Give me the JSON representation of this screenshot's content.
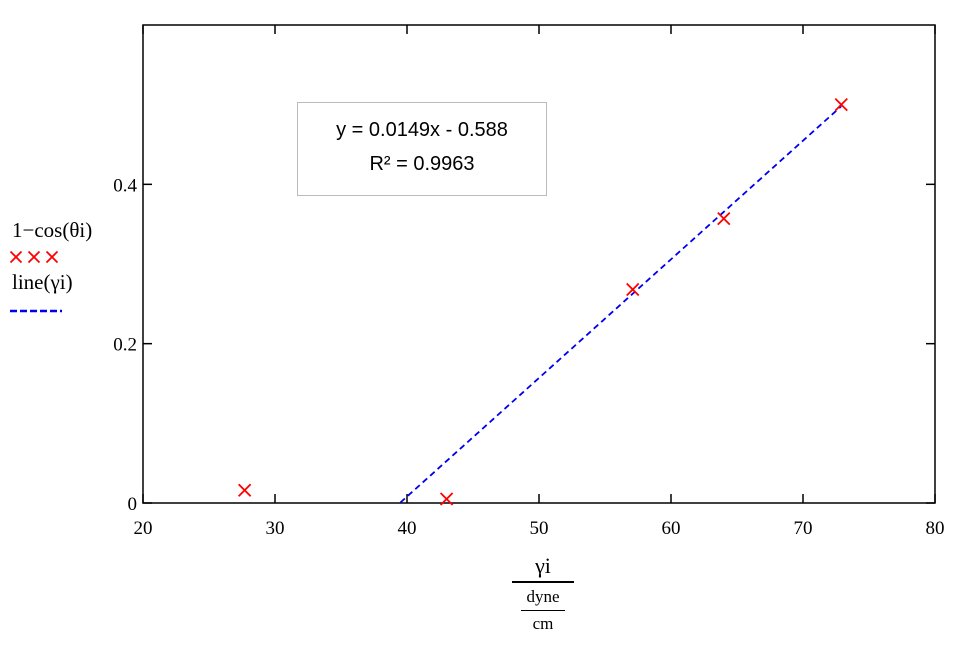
{
  "chart_data": {
    "type": "scatter",
    "xlim": [
      20,
      80
    ],
    "ylim": [
      0,
      0.6
    ],
    "x_ticks": [
      20,
      30,
      40,
      50,
      60,
      70,
      80
    ],
    "y_ticks": [
      0,
      0.2,
      0.4
    ],
    "y_tick_labels": [
      "0",
      "0.2",
      "0.4"
    ],
    "grid": false,
    "legend_placement": "left",
    "xlabel": {
      "numerator": "γi",
      "unit_numerator": "dyne",
      "unit_denominator": "cm"
    },
    "series": [
      {
        "name": "1−cos(θi)",
        "style": "markers",
        "marker": "x",
        "color": "#ff0000",
        "x": [
          27.7,
          43.0,
          57.1,
          64.0,
          72.9
        ],
        "y": [
          0.016,
          0.005,
          0.268,
          0.357,
          0.5
        ]
      },
      {
        "name": "line(γi)",
        "style": "dashed-line",
        "color": "#0000ee",
        "x": [
          39.5,
          72.9
        ],
        "y": [
          0.0006,
          0.498
        ]
      }
    ],
    "annotation": {
      "equation": "y = 0.0149x - 0.588",
      "r_squared": "R² = 0.9963"
    }
  }
}
